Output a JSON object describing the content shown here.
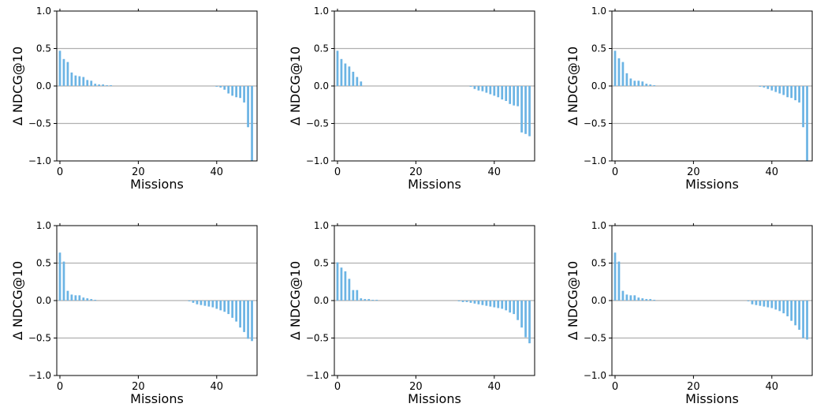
{
  "chart_data": [
    {
      "type": "bar",
      "xlabel": "Missions",
      "ylabel": "Δ NDCG@10",
      "xlim": [
        -0.8,
        50.3
      ],
      "ylim": [
        -1.0,
        1.0
      ],
      "xticks": [
        0,
        20,
        40
      ],
      "xtick_labels": [
        "0",
        "20",
        "40"
      ],
      "yticks": [
        -1.0,
        -0.5,
        0.0,
        0.5,
        1.0
      ],
      "ytick_labels": [
        "−1.0",
        "−0.5",
        "0.0",
        "0.5",
        "1.0"
      ],
      "grid": "horizontal",
      "x": [
        0,
        1,
        2,
        3,
        4,
        5,
        6,
        7,
        8,
        9,
        10,
        11,
        12,
        13,
        14,
        15,
        16,
        17,
        18,
        19,
        20,
        21,
        22,
        23,
        24,
        25,
        26,
        27,
        28,
        29,
        30,
        31,
        32,
        33,
        34,
        35,
        36,
        37,
        38,
        39,
        40,
        41,
        42,
        43,
        44,
        45,
        46,
        47,
        48,
        49
      ],
      "values": [
        0.47,
        0.36,
        0.32,
        0.18,
        0.14,
        0.13,
        0.12,
        0.08,
        0.07,
        0.03,
        0.02,
        0.02,
        0.01,
        0.01,
        0,
        0,
        0,
        0,
        0,
        0,
        0,
        0,
        0,
        0,
        0,
        0,
        0,
        0,
        0,
        0,
        0,
        0,
        0,
        0,
        0,
        0,
        0,
        0,
        0,
        0,
        -0.01,
        -0.02,
        -0.05,
        -0.1,
        -0.13,
        -0.15,
        -0.16,
        -0.22,
        -0.55,
        -1.0
      ]
    },
    {
      "type": "bar",
      "xlabel": "Missions",
      "ylabel": "Δ NDCG@10",
      "xlim": [
        -0.8,
        50.3
      ],
      "ylim": [
        -1.0,
        1.0
      ],
      "xticks": [
        0,
        20,
        40
      ],
      "xtick_labels": [
        "0",
        "20",
        "40"
      ],
      "yticks": [
        -1.0,
        -0.5,
        0.0,
        0.5,
        1.0
      ],
      "ytick_labels": [
        "−1.0",
        "−0.5",
        "0.0",
        "0.5",
        "1.0"
      ],
      "grid": "horizontal",
      "x": [
        0,
        1,
        2,
        3,
        4,
        5,
        6,
        7,
        8,
        9,
        10,
        11,
        12,
        13,
        14,
        15,
        16,
        17,
        18,
        19,
        20,
        21,
        22,
        23,
        24,
        25,
        26,
        27,
        28,
        29,
        30,
        31,
        32,
        33,
        34,
        35,
        36,
        37,
        38,
        39,
        40,
        41,
        42,
        43,
        44,
        45,
        46,
        47,
        48,
        49
      ],
      "values": [
        0.47,
        0.36,
        0.3,
        0.26,
        0.19,
        0.12,
        0.06,
        0,
        0,
        0,
        0,
        0,
        0,
        0,
        0,
        0,
        0,
        0,
        0,
        0,
        0,
        0,
        0,
        0,
        0,
        0,
        0,
        0,
        0,
        0,
        0,
        0,
        0,
        0,
        -0.01,
        -0.04,
        -0.06,
        -0.07,
        -0.09,
        -0.11,
        -0.13,
        -0.15,
        -0.18,
        -0.2,
        -0.24,
        -0.26,
        -0.27,
        -0.62,
        -0.64,
        -0.67
      ]
    },
    {
      "type": "bar",
      "xlabel": "Missions",
      "ylabel": "Δ NDCG@10",
      "xlim": [
        -0.8,
        50.3
      ],
      "ylim": [
        -1.0,
        1.0
      ],
      "xticks": [
        0,
        20,
        40
      ],
      "xtick_labels": [
        "0",
        "20",
        "40"
      ],
      "yticks": [
        -1.0,
        -0.5,
        0.0,
        0.5,
        1.0
      ],
      "ytick_labels": [
        "−1.0",
        "−0.5",
        "0.0",
        "0.5",
        "1.0"
      ],
      "grid": "horizontal",
      "x": [
        0,
        1,
        2,
        3,
        4,
        5,
        6,
        7,
        8,
        9,
        10,
        11,
        12,
        13,
        14,
        15,
        16,
        17,
        18,
        19,
        20,
        21,
        22,
        23,
        24,
        25,
        26,
        27,
        28,
        29,
        30,
        31,
        32,
        33,
        34,
        35,
        36,
        37,
        38,
        39,
        40,
        41,
        42,
        43,
        44,
        45,
        46,
        47,
        48,
        49
      ],
      "values": [
        0.47,
        0.37,
        0.32,
        0.17,
        0.1,
        0.07,
        0.07,
        0.06,
        0.03,
        0.02,
        0.01,
        0,
        0,
        0,
        0,
        0,
        0,
        0,
        0,
        0,
        0,
        0,
        0,
        0,
        0,
        0,
        0,
        0,
        0,
        0,
        0,
        0,
        0,
        0,
        0,
        0,
        0,
        -0.01,
        -0.02,
        -0.04,
        -0.06,
        -0.08,
        -0.1,
        -0.12,
        -0.15,
        -0.16,
        -0.19,
        -0.22,
        -0.55,
        -1.0
      ]
    },
    {
      "type": "bar",
      "xlabel": "Missions",
      "ylabel": "Δ NDCG@10",
      "xlim": [
        -0.8,
        50.3
      ],
      "ylim": [
        -1.0,
        1.0
      ],
      "xticks": [
        0,
        20,
        40
      ],
      "xtick_labels": [
        "0",
        "20",
        "40"
      ],
      "yticks": [
        -1.0,
        -0.5,
        0.0,
        0.5,
        1.0
      ],
      "ytick_labels": [
        "−1.0",
        "−0.5",
        "0.0",
        "0.5",
        "1.0"
      ],
      "grid": "horizontal",
      "x": [
        0,
        1,
        2,
        3,
        4,
        5,
        6,
        7,
        8,
        9,
        10,
        11,
        12,
        13,
        14,
        15,
        16,
        17,
        18,
        19,
        20,
        21,
        22,
        23,
        24,
        25,
        26,
        27,
        28,
        29,
        30,
        31,
        32,
        33,
        34,
        35,
        36,
        37,
        38,
        39,
        40,
        41,
        42,
        43,
        44,
        45,
        46,
        47,
        48,
        49
      ],
      "values": [
        0.64,
        0.52,
        0.13,
        0.08,
        0.07,
        0.07,
        0.04,
        0.03,
        0.02,
        0.01,
        0,
        0,
        0,
        0,
        0,
        0,
        0,
        0,
        0,
        0,
        0,
        0,
        0,
        0,
        0,
        0,
        0,
        0,
        0,
        0,
        0,
        0,
        0,
        -0.01,
        -0.03,
        -0.05,
        -0.06,
        -0.07,
        -0.08,
        -0.09,
        -0.11,
        -0.13,
        -0.15,
        -0.18,
        -0.23,
        -0.28,
        -0.36,
        -0.42,
        -0.51,
        -0.54
      ]
    },
    {
      "type": "bar",
      "xlabel": "Missions",
      "ylabel": "Δ NDCG@10",
      "xlim": [
        -0.8,
        50.3
      ],
      "ylim": [
        -1.0,
        1.0
      ],
      "xticks": [
        0,
        20,
        40
      ],
      "xtick_labels": [
        "0",
        "20",
        "40"
      ],
      "yticks": [
        -1.0,
        -0.5,
        0.0,
        0.5,
        1.0
      ],
      "ytick_labels": [
        "−1.0",
        "−0.5",
        "0.0",
        "0.5",
        "1.0"
      ],
      "grid": "horizontal",
      "x": [
        0,
        1,
        2,
        3,
        4,
        5,
        6,
        7,
        8,
        9,
        10,
        11,
        12,
        13,
        14,
        15,
        16,
        17,
        18,
        19,
        20,
        21,
        22,
        23,
        24,
        25,
        26,
        27,
        28,
        29,
        30,
        31,
        32,
        33,
        34,
        35,
        36,
        37,
        38,
        39,
        40,
        41,
        42,
        43,
        44,
        45,
        46,
        47,
        48,
        49
      ],
      "values": [
        0.51,
        0.44,
        0.39,
        0.29,
        0.14,
        0.14,
        0.03,
        0.02,
        0.02,
        0.01,
        0.01,
        0,
        0,
        0,
        0,
        0,
        0,
        0,
        0,
        0,
        0,
        0,
        0,
        0,
        0,
        0,
        0,
        0,
        0,
        0,
        0,
        -0.01,
        -0.02,
        -0.02,
        -0.03,
        -0.04,
        -0.05,
        -0.06,
        -0.07,
        -0.08,
        -0.09,
        -0.1,
        -0.11,
        -0.13,
        -0.16,
        -0.18,
        -0.26,
        -0.36,
        -0.49,
        -0.57
      ]
    },
    {
      "type": "bar",
      "xlabel": "Missions",
      "ylabel": "Δ NDCG@10",
      "xlim": [
        -0.8,
        50.3
      ],
      "ylim": [
        -1.0,
        1.0
      ],
      "xticks": [
        0,
        20,
        40
      ],
      "xtick_labels": [
        "0",
        "20",
        "40"
      ],
      "yticks": [
        -1.0,
        -0.5,
        0.0,
        0.5,
        1.0
      ],
      "ytick_labels": [
        "−1.0",
        "−0.5",
        "0.0",
        "0.5",
        "1.0"
      ],
      "grid": "horizontal",
      "x": [
        0,
        1,
        2,
        3,
        4,
        5,
        6,
        7,
        8,
        9,
        10,
        11,
        12,
        13,
        14,
        15,
        16,
        17,
        18,
        19,
        20,
        21,
        22,
        23,
        24,
        25,
        26,
        27,
        28,
        29,
        30,
        31,
        32,
        33,
        34,
        35,
        36,
        37,
        38,
        39,
        40,
        41,
        42,
        43,
        44,
        45,
        46,
        47,
        48,
        49
      ],
      "values": [
        0.64,
        0.52,
        0.13,
        0.08,
        0.07,
        0.07,
        0.04,
        0.03,
        0.02,
        0.02,
        0.01,
        0,
        0,
        0,
        0,
        0,
        0,
        0,
        0,
        0,
        0,
        0,
        0,
        0,
        0,
        0,
        0,
        0,
        0,
        0,
        0,
        0,
        0,
        0,
        -0.01,
        -0.05,
        -0.06,
        -0.07,
        -0.08,
        -0.09,
        -0.1,
        -0.12,
        -0.14,
        -0.17,
        -0.21,
        -0.27,
        -0.33,
        -0.39,
        -0.5,
        -0.52
      ]
    }
  ],
  "colors": {
    "bar": "#6cb4e4",
    "grid": "#b0b0b0",
    "axis": "#000000"
  }
}
